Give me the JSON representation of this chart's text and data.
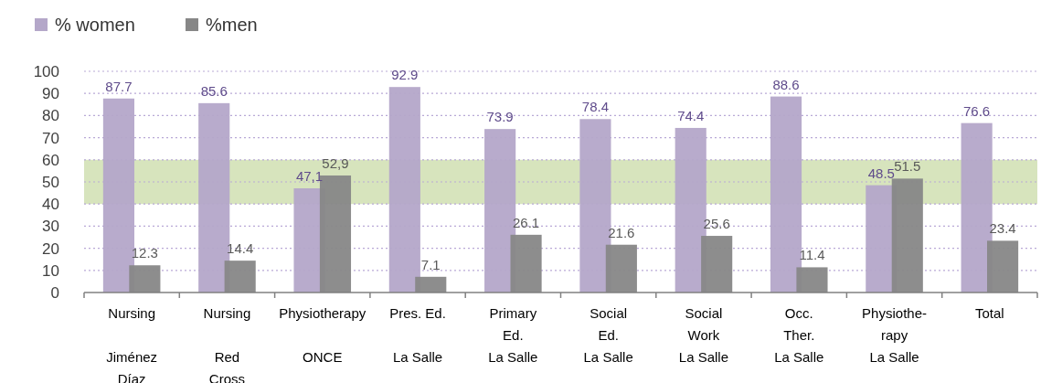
{
  "chart_data": {
    "type": "bar",
    "categories": [
      "Nursing\n\nJiménez\nDíaz",
      "Nursing\n\nRed\nCross",
      "Physiotherapy\n\nONCE",
      "Pres. Ed.\n\nLa Salle",
      "Primary\nEd.\nLa Salle",
      "Social\nEd.\nLa Salle",
      "Social\nWork\nLa Salle",
      "Occ.\nTher.\nLa Salle",
      "Physiothe-\nrapy\nLa Salle",
      "Total"
    ],
    "series": [
      {
        "name": "% women",
        "color": "#b4a7c9",
        "values": [
          87.7,
          85.6,
          47.1,
          92.9,
          73.9,
          78.4,
          74.4,
          88.6,
          48.5,
          76.6
        ],
        "value_labels": [
          "87.7",
          "85.6",
          "47,1",
          "92.9",
          "73.9",
          "78.4",
          "74.4",
          "88.6",
          "48.5",
          "76.6"
        ]
      },
      {
        "name": "%men",
        "color": "#878787",
        "values": [
          12.3,
          14.4,
          52.9,
          7.1,
          26.1,
          21.6,
          25.6,
          11.4,
          51.5,
          23.4
        ],
        "value_labels": [
          "12.3",
          "14.4",
          "52,9",
          "7.1",
          "26.1",
          "21.6",
          "25.6",
          "11.4",
          "51.5",
          "23.4"
        ]
      }
    ],
    "ylim": [
      0,
      100
    ],
    "yticks": [
      0,
      10,
      20,
      30,
      40,
      50,
      60,
      70,
      80,
      90,
      100
    ],
    "grid": "y",
    "legend": "top left",
    "bands": [
      {
        "axis": "y",
        "from": 40,
        "to": 60,
        "color": "#d7e4bd"
      }
    ]
  }
}
